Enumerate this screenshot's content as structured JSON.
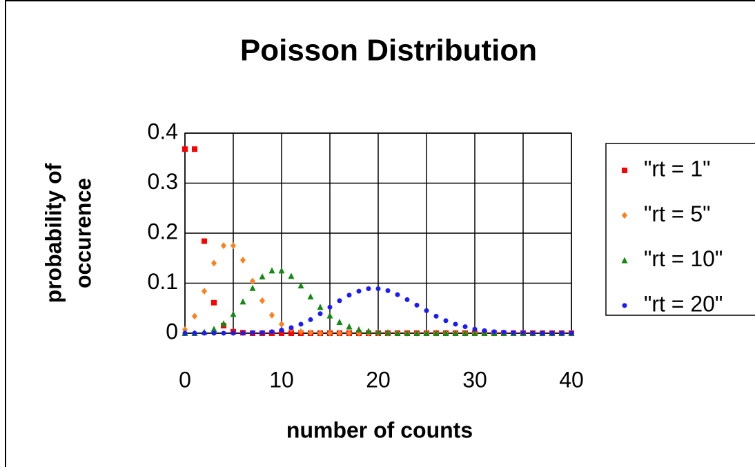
{
  "chart_data": {
    "type": "scatter",
    "title": "Poisson Distribution",
    "xlabel": "number of counts",
    "ylabel": [
      "probability of",
      "occurence"
    ],
    "x": [
      0,
      1,
      2,
      3,
      4,
      5,
      6,
      7,
      8,
      9,
      10,
      11,
      12,
      13,
      14,
      15,
      16,
      17,
      18,
      19,
      20,
      21,
      22,
      23,
      24,
      25,
      26,
      27,
      28,
      29,
      30,
      31,
      32,
      33,
      34,
      35,
      36,
      37,
      38,
      39,
      40
    ],
    "series": [
      {
        "name": "\"rt = 1\"",
        "color": "#ff0000",
        "marker": "square",
        "values": [
          0.368,
          0.368,
          0.184,
          0.061,
          0.015,
          0.003,
          0.001,
          0,
          0,
          0,
          0,
          0,
          0,
          0,
          0,
          0,
          0,
          0,
          0,
          0,
          0,
          0,
          0,
          0,
          0,
          0,
          0,
          0,
          0,
          0,
          0,
          0,
          0,
          0,
          0,
          0,
          0,
          0,
          0,
          0,
          0
        ]
      },
      {
        "name": "\"rt = 5\"",
        "color": "#ff7f1a",
        "marker": "diamond",
        "values": [
          0.007,
          0.034,
          0.084,
          0.14,
          0.175,
          0.175,
          0.146,
          0.104,
          0.065,
          0.036,
          0.018,
          0.008,
          0.003,
          0.001,
          0,
          0,
          0,
          0,
          0,
          0,
          0,
          0,
          0,
          0,
          0,
          0,
          0,
          0,
          0,
          0,
          0,
          0,
          0,
          0,
          0,
          0,
          0,
          0,
          0,
          0,
          0
        ]
      },
      {
        "name": "\"rt = 10\"",
        "color": "#138a13",
        "marker": "triangle",
        "values": [
          0,
          0,
          0.002,
          0.008,
          0.019,
          0.038,
          0.063,
          0.09,
          0.113,
          0.125,
          0.125,
          0.114,
          0.095,
          0.073,
          0.052,
          0.035,
          0.022,
          0.013,
          0.007,
          0.004,
          0.002,
          0.001,
          0,
          0,
          0,
          0,
          0,
          0,
          0,
          0,
          0,
          0,
          0,
          0,
          0,
          0,
          0,
          0,
          0,
          0,
          0
        ]
      },
      {
        "name": "\"rt = 20\"",
        "color": "#1a1aff",
        "marker": "circle",
        "values": [
          0,
          0,
          0,
          0,
          0,
          0,
          0,
          0.001,
          0.001,
          0.003,
          0.006,
          0.011,
          0.018,
          0.027,
          0.039,
          0.052,
          0.065,
          0.076,
          0.084,
          0.089,
          0.089,
          0.085,
          0.077,
          0.067,
          0.056,
          0.045,
          0.034,
          0.025,
          0.018,
          0.013,
          0.008,
          0.005,
          0.003,
          0.002,
          0.001,
          0.001,
          0,
          0,
          0,
          0,
          0
        ]
      }
    ],
    "xlim": [
      0,
      40
    ],
    "xticks": [
      0,
      10,
      20,
      30,
      40
    ],
    "xgrid_ticks": [
      0,
      5,
      10,
      15,
      20,
      25,
      30,
      35,
      40
    ],
    "ylim": [
      0,
      0.4
    ],
    "yticks": [
      0,
      0.1,
      0.2,
      0.3,
      0.4
    ],
    "grid": true,
    "legend": "right"
  }
}
